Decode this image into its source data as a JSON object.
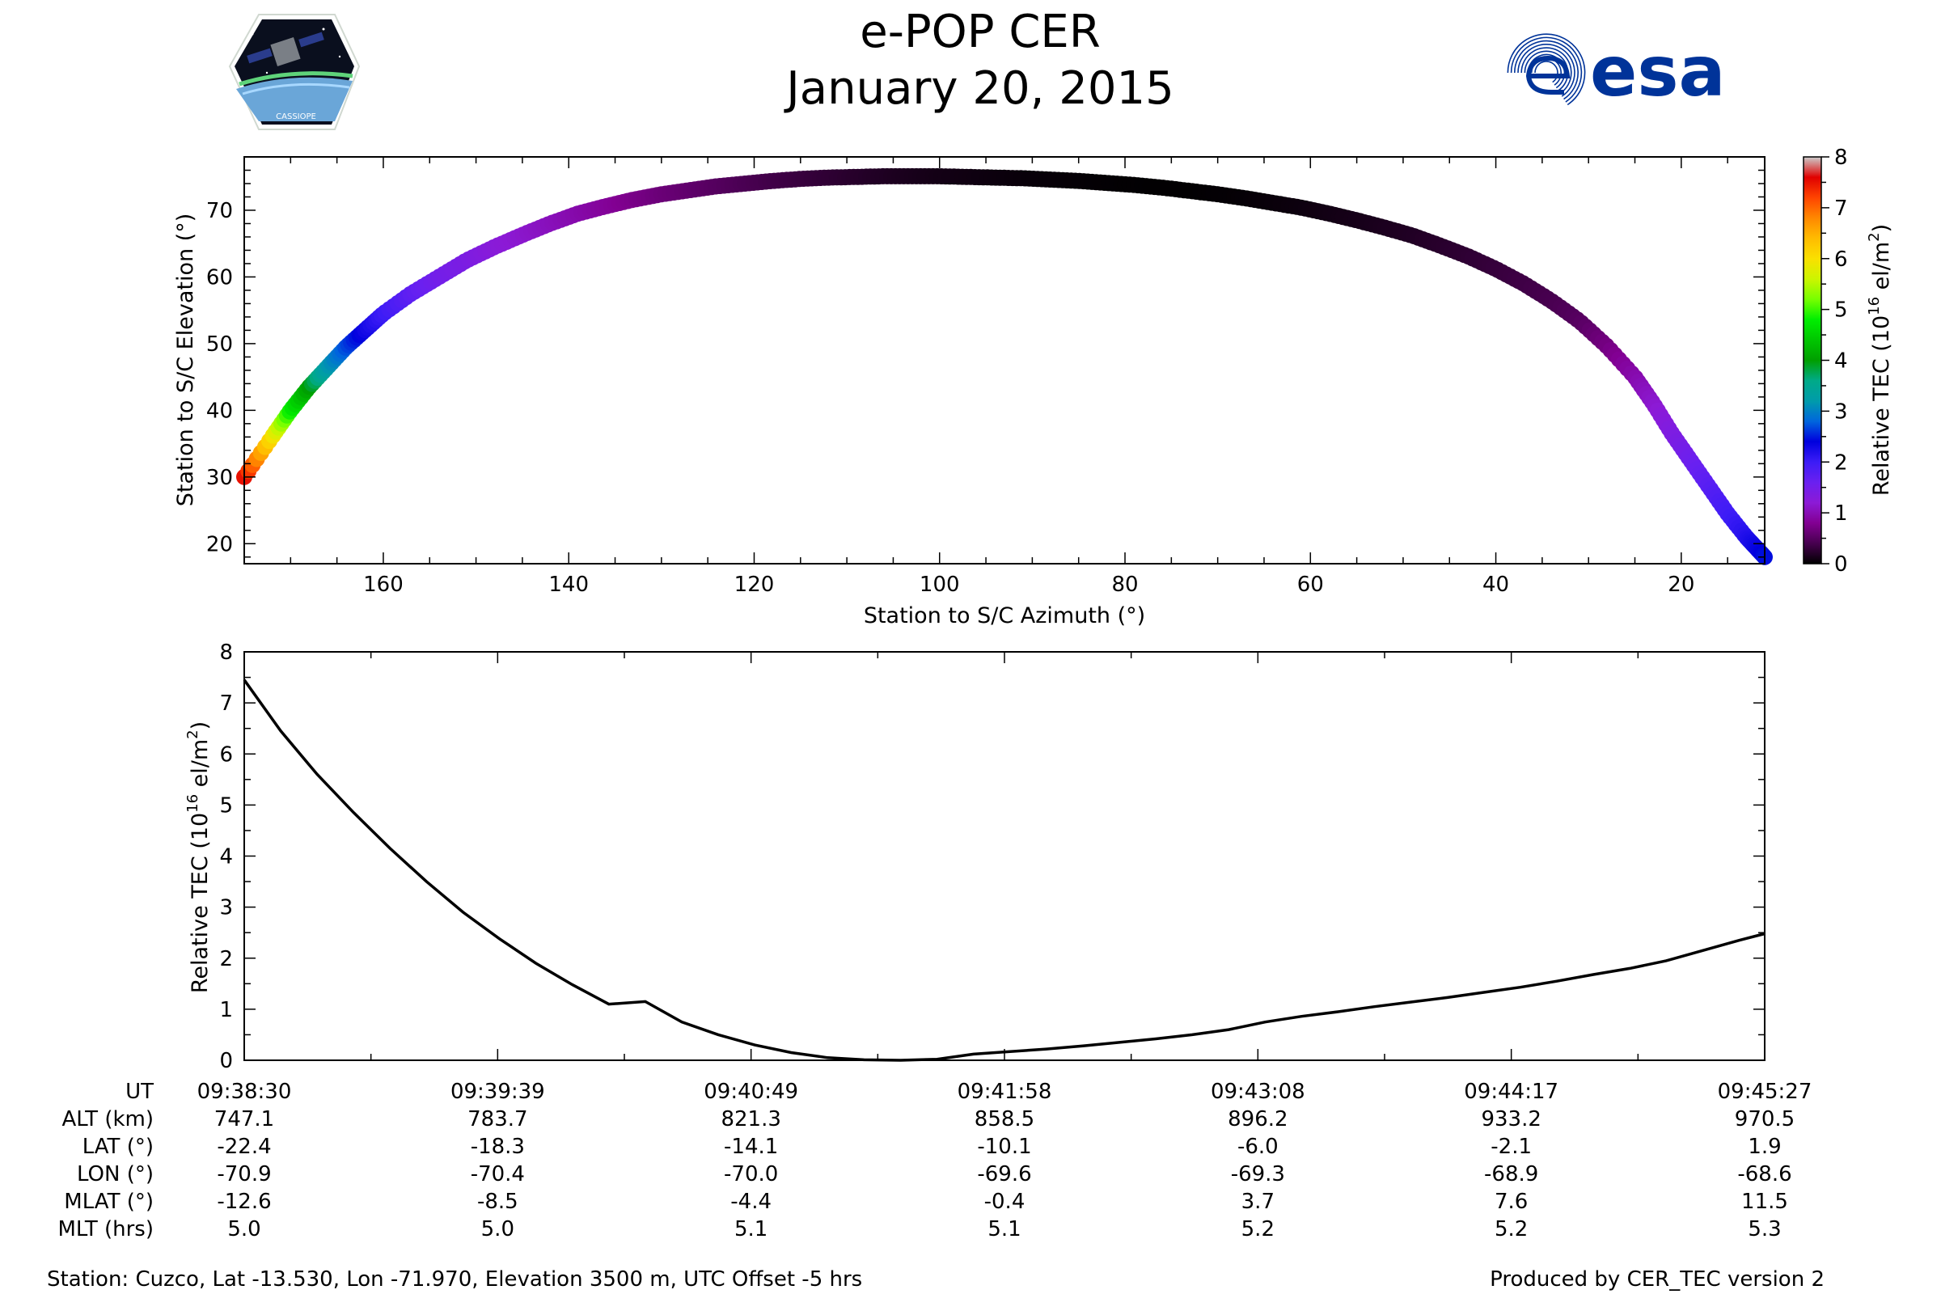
{
  "header": {
    "title_line1": "e-POP CER",
    "title_line2": "January 20, 2015",
    "left_logo": {
      "icon": "cassiope-mission-logo",
      "text": "CASSIOPE"
    },
    "right_logo": {
      "icon": "esa-logo",
      "text": "esa",
      "color": "#003399"
    }
  },
  "chart_data": [
    {
      "type": "scatter",
      "xlabel": "Station to S/C Azimuth (°)",
      "ylabel": "Station to S/C Elevation (°)",
      "xlim": [
        175,
        11
      ],
      "ylim": [
        17,
        78
      ],
      "xticks": [
        160,
        140,
        120,
        100,
        80,
        60,
        40,
        20
      ],
      "yticks": [
        20,
        30,
        40,
        50,
        60,
        70
      ],
      "xaxis_reversed": true,
      "grid": false,
      "colorbar": {
        "label": "Relative TEC (10",
        "label_superscript": "16",
        "label_suffix": " el/m",
        "label_suffix_superscript": "2",
        "label_end": ")",
        "range": [
          0,
          8
        ],
        "ticks": [
          0,
          1,
          2,
          3,
          4,
          5,
          6,
          7,
          8
        ],
        "colormap": "nipy_spectral"
      },
      "series": [
        {
          "x": [
            175,
            172,
            170,
            168,
            166,
            164,
            162,
            160,
            157,
            154,
            151,
            148,
            145,
            142,
            139,
            136,
            133,
            130,
            127,
            124,
            121,
            118,
            115,
            112,
            109,
            106,
            103,
            100,
            97,
            94,
            91,
            88,
            85,
            82,
            79,
            76,
            73,
            70,
            67,
            64,
            61,
            58,
            55,
            52,
            49,
            46,
            43,
            40,
            37,
            34,
            31,
            28,
            25,
            23,
            21,
            19,
            17,
            15,
            13,
            12,
            11
          ],
          "y": [
            30,
            36,
            40,
            43.5,
            46.5,
            49.5,
            52,
            54.5,
            57.5,
            60,
            62.5,
            64.5,
            66.3,
            68,
            69.5,
            70.6,
            71.6,
            72.4,
            73,
            73.6,
            74,
            74.4,
            74.7,
            74.9,
            75,
            75.1,
            75.1,
            75.1,
            75,
            74.9,
            74.8,
            74.6,
            74.4,
            74.1,
            73.8,
            73.4,
            72.9,
            72.4,
            71.8,
            71.1,
            70.4,
            69.5,
            68.5,
            67.4,
            66.2,
            64.7,
            63.1,
            61.2,
            59,
            56.4,
            53.4,
            49.6,
            45,
            41,
            36.5,
            32.5,
            28.5,
            24.5,
            21,
            19.5,
            18
          ],
          "tec": [
            7.5,
            6,
            4.8,
            4,
            3.2,
            2.7,
            2.3,
            2,
            1.7,
            1.5,
            1.4,
            1.25,
            1.15,
            1.05,
            0.95,
            0.85,
            0.75,
            0.65,
            0.58,
            0.5,
            0.43,
            0.37,
            0.32,
            0.27,
            0.22,
            0.18,
            0.14,
            0.11,
            0.09,
            0.07,
            0.05,
            0.04,
            0.03,
            0.02,
            0.015,
            0.01,
            0.01,
            0.02,
            0.03,
            0.05,
            0.07,
            0.1,
            0.12,
            0.15,
            0.18,
            0.22,
            0.26,
            0.3,
            0.35,
            0.4,
            0.5,
            0.7,
            0.95,
            1.15,
            1.35,
            1.55,
            1.75,
            1.95,
            2.15,
            2.3,
            2.45
          ]
        }
      ]
    },
    {
      "type": "line",
      "xlabel": "",
      "ylabel": "Relative TEC (10",
      "ylabel_superscript": "16",
      "ylabel_suffix": " el/m",
      "ylabel_suffix_superscript": "2",
      "ylabel_end": ")",
      "xlim": [
        0,
        417
      ],
      "ylim": [
        0,
        8
      ],
      "yticks": [
        0,
        1,
        2,
        3,
        4,
        5,
        6,
        7,
        8
      ],
      "grid": false,
      "series": [
        {
          "x": [
            0,
            10,
            20,
            30,
            40,
            50,
            60,
            70,
            80,
            90,
            100,
            110,
            120,
            130,
            140,
            150,
            160,
            170,
            180,
            190,
            200,
            210,
            220,
            230,
            240,
            250,
            260,
            270,
            280,
            290,
            300,
            310,
            320,
            330,
            340,
            350,
            360,
            370,
            380,
            390,
            400,
            410,
            417
          ],
          "y": [
            7.45,
            6.45,
            5.6,
            4.85,
            4.15,
            3.5,
            2.9,
            2.38,
            1.9,
            1.48,
            1.1,
            1.15,
            0.75,
            0.5,
            0.3,
            0.15,
            0.05,
            0.01,
            0.0,
            0.02,
            0.12,
            0.17,
            0.22,
            0.28,
            0.35,
            0.42,
            0.5,
            0.6,
            0.75,
            0.86,
            0.95,
            1.05,
            1.14,
            1.23,
            1.33,
            1.43,
            1.55,
            1.68,
            1.8,
            1.95,
            2.15,
            2.35,
            2.48
          ]
        }
      ]
    }
  ],
  "info_table": {
    "row_labels": [
      "UT",
      "ALT (km)",
      "LAT (°)",
      "LON (°)",
      "MLAT (°)",
      "MLT (hrs)"
    ],
    "columns": [
      [
        "09:38:30",
        "747.1",
        "-22.4",
        "-70.9",
        "-12.6",
        "5.0"
      ],
      [
        "09:39:39",
        "783.7",
        "-18.3",
        "-70.4",
        "-8.5",
        "5.0"
      ],
      [
        "09:40:49",
        "821.3",
        "-14.1",
        "-70.0",
        "-4.4",
        "5.1"
      ],
      [
        "09:41:58",
        "858.5",
        "-10.1",
        "-69.6",
        "-0.4",
        "5.1"
      ],
      [
        "09:43:08",
        "896.2",
        "-6.0",
        "-69.3",
        "3.7",
        "5.2"
      ],
      [
        "09:44:17",
        "933.2",
        "-2.1",
        "-68.9",
        "7.6",
        "5.2"
      ],
      [
        "09:45:27",
        "970.5",
        "1.9",
        "-68.6",
        "11.5",
        "5.3"
      ]
    ]
  },
  "footer": {
    "station": "Station: Cuzco, Lat -13.530, Lon -71.970, Elevation 3500 m, UTC Offset -5 hrs",
    "produced_by": "Produced by CER_TEC version 2"
  }
}
